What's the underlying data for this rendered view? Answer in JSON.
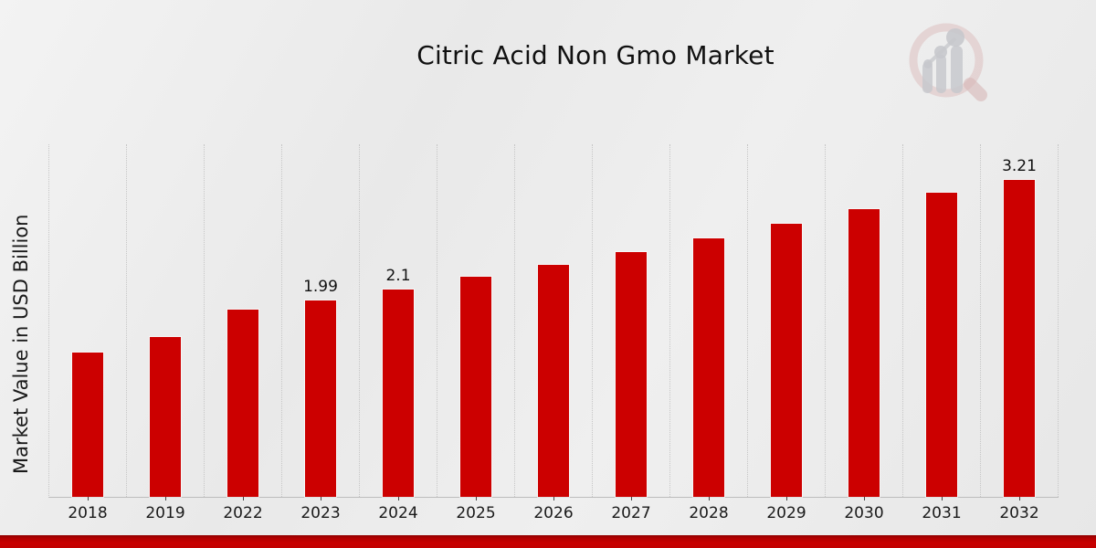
{
  "title": "Citric Acid Non Gmo Market",
  "y_axis_label": "Market Value in USD Billion",
  "icons": {
    "logo": "magnifier-bar-chart-logo"
  },
  "colors": {
    "bar": "#cc0000",
    "footer_strip": "#c00000",
    "background": "#ebebeb",
    "gridline": "#c6c6c6",
    "axis_line": "#bdbdbd",
    "text": "#111111",
    "logo_ring": "#ddbfbf",
    "logo_bars": "#c7c8cc"
  },
  "chart_data": {
    "type": "bar",
    "title": "Citric Acid Non Gmo Market",
    "xlabel": "",
    "ylabel": "Market Value in USD Billion",
    "categories": [
      "2018",
      "2019",
      "2022",
      "2023",
      "2024",
      "2025",
      "2026",
      "2027",
      "2028",
      "2029",
      "2030",
      "2031",
      "2032"
    ],
    "values": [
      1.46,
      1.62,
      1.9,
      1.99,
      2.1,
      2.23,
      2.35,
      2.48,
      2.62,
      2.77,
      2.92,
      3.08,
      3.21
    ],
    "bar_labels": [
      "",
      "",
      "",
      "1.99",
      "2.1",
      "",
      "",
      "",
      "",
      "",
      "",
      "",
      "3.21"
    ],
    "ylim": [
      0,
      3.58
    ],
    "unit": "USD Billion",
    "grid": "vertical-dotted",
    "legend": "none",
    "bar_color": "#cc0000"
  }
}
